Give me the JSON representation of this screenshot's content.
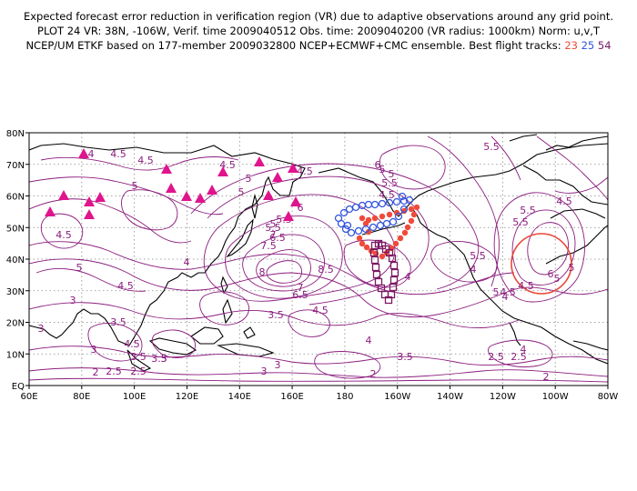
{
  "title": {
    "line1": "Expected forecast error reduction in verification region (VR) due to adaptive observations around any grid point.",
    "line2": "PLOT 24 VR: 38N, -106W, Verif. time 2009040512 Obs. time: 2009040200 (VR radius: 1000km) Norm: u,v,T",
    "line3_prefix": "NCEP/UM ETKF based on 177-member 2009032800 NCEP+ECMWF+CMC ensemble. Best flight tracks:",
    "track_23": "23",
    "track_25": "25",
    "track_54": "54"
  },
  "axes": {
    "lon_labels": [
      "60E",
      "80E",
      "100E",
      "120E",
      "140E",
      "160E",
      "180",
      "160W",
      "140W",
      "120W",
      "100W",
      "80W"
    ],
    "lat_labels": [
      "EQ",
      "10N",
      "20N",
      "30N",
      "40N",
      "50N",
      "60N",
      "70N",
      "80N"
    ]
  },
  "contour_labels": [
    "4.5",
    "4",
    "4.5",
    "5",
    "5",
    "4.5",
    "4.5",
    "5",
    "4",
    "4.5",
    "5",
    "5",
    "4.5",
    "5.5",
    "6",
    "6.5",
    "5.5",
    "4.5",
    "5.5",
    "5",
    "6",
    "5",
    "5.5",
    "4.5",
    "5.5",
    "5",
    "4",
    "4.5",
    "5",
    "6",
    "5.5",
    "7",
    "7.5",
    "8",
    "8.5",
    "7",
    "6.5",
    "4",
    "4.5",
    "3.5",
    "3",
    "3.5",
    "4.5",
    "3",
    "3",
    "3.5",
    "3.5",
    "4",
    "3.5",
    "2.5",
    "2",
    "2",
    "2.5",
    "3",
    "2",
    "2.5",
    "3",
    "2.5",
    "3",
    "4",
    "5",
    "4.5",
    "5.5",
    "4"
  ],
  "colors": {
    "contour": "#8b1d7e",
    "coast": "#000000",
    "grid": "#888888",
    "verification_circle": "#e8483a",
    "track_23": "#f04a3a",
    "track_25": "#3355dd",
    "track_54": "#7b1a63",
    "triangles": "#e0148c"
  },
  "markers": {
    "triangle_icon": "filled-triangle",
    "track_23_icon": "filled-circle",
    "track_25_icon": "open-circle",
    "track_54_icon": "open-square"
  }
}
